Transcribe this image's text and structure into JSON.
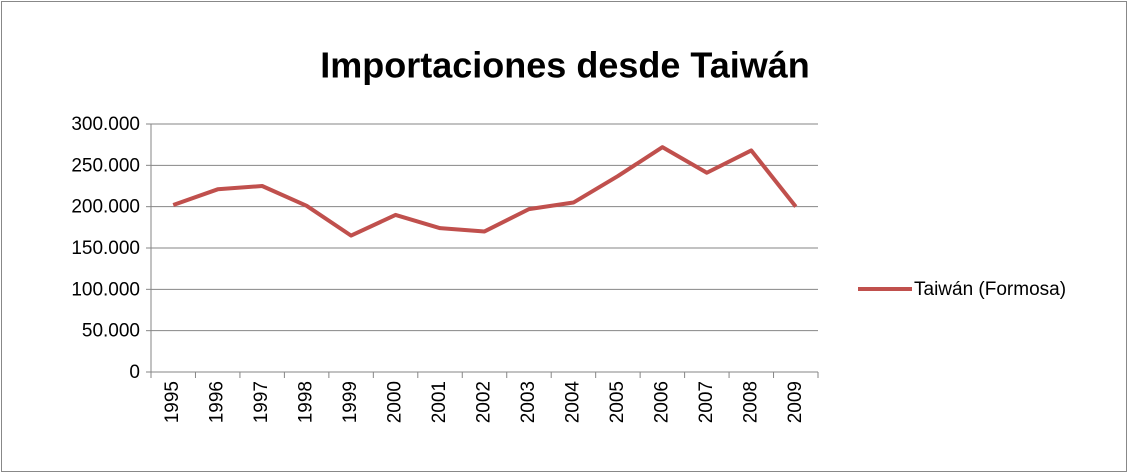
{
  "chart_data": {
    "type": "line",
    "title": "Importaciones desde Taiwán",
    "categories": [
      "1995",
      "1996",
      "1997",
      "1998",
      "1999",
      "2000",
      "2001",
      "2002",
      "2003",
      "2004",
      "2005",
      "2006",
      "2007",
      "2008",
      "2009"
    ],
    "series": [
      {
        "name": "Taiwán (Formosa)",
        "color": "#c0504d",
        "values": [
          202000,
          221000,
          225000,
          201000,
          165000,
          190000,
          174000,
          170000,
          197000,
          205000,
          237000,
          272000,
          241000,
          268000,
          200000
        ]
      }
    ],
    "ylim": [
      0,
      300000
    ],
    "yticks": [
      0,
      {
        "value": 50000,
        "label": "50.000"
      },
      {
        "value": 100000,
        "label": "100.000"
      },
      {
        "value": 150000,
        "label": "150.000"
      },
      {
        "value": 200000,
        "label": "200.000"
      },
      {
        "value": 250000,
        "label": "250.000"
      },
      {
        "value": 300000,
        "label": "300.000"
      }
    ],
    "grid": true,
    "legend": "right"
  }
}
